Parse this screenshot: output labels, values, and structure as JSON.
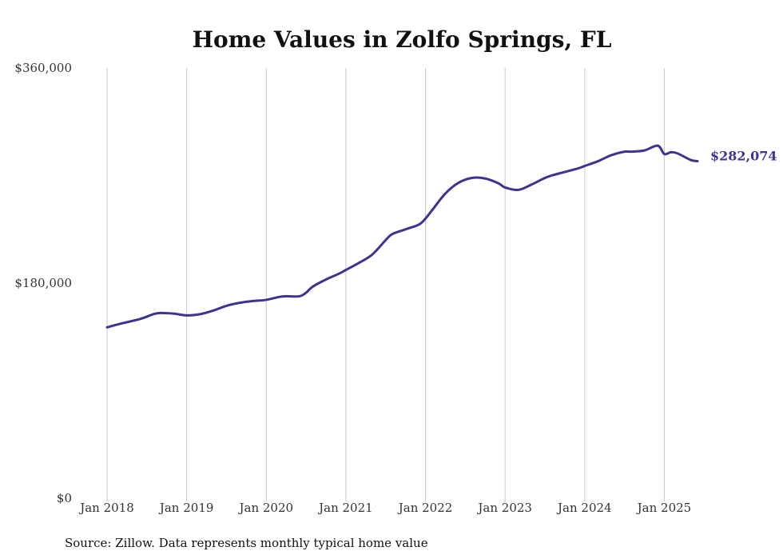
{
  "chart_data": {
    "type": "line",
    "title": "Home Values in Zolfo Springs, FL",
    "source": "Source: Zillow. Data represents monthly typical home value",
    "ylim": [
      0,
      360000
    ],
    "y_ticks": [
      {
        "value": 0,
        "label": "$0"
      },
      {
        "value": 180000,
        "label": "$180,000"
      },
      {
        "value": 360000,
        "label": "$360,000"
      }
    ],
    "x_ticks": [
      {
        "value": 2018.0,
        "label": "Jan 2018"
      },
      {
        "value": 2019.0,
        "label": "Jan 2019"
      },
      {
        "value": 2020.0,
        "label": "Jan 2020"
      },
      {
        "value": 2021.0,
        "label": "Jan 2021"
      },
      {
        "value": 2022.0,
        "label": "Jan 2022"
      },
      {
        "value": 2023.0,
        "label": "Jan 2023"
      },
      {
        "value": 2024.0,
        "label": "Jan 2024"
      },
      {
        "value": 2025.0,
        "label": "Jan 2025"
      }
    ],
    "xlim": [
      2018.0,
      2025.417
    ],
    "grid": "vertical",
    "line_color": "#3d3391",
    "end_label": "$282,074",
    "series": [
      {
        "x": [
          2018.0,
          2018.167,
          2018.417,
          2018.583,
          2018.667,
          2018.833,
          2019.0,
          2019.167,
          2019.333,
          2019.5,
          2019.667,
          2019.833,
          2020.0,
          2020.167,
          2020.25,
          2020.417,
          2020.5,
          2020.583,
          2020.75,
          2020.917,
          2021.0,
          2021.167,
          2021.333,
          2021.5,
          2021.583,
          2021.75,
          2021.917,
          2022.0,
          2022.083,
          2022.25,
          2022.417,
          2022.583,
          2022.75,
          2022.917,
          2023.0,
          2023.167,
          2023.333,
          2023.5,
          2023.583,
          2023.75,
          2023.917,
          2024.0,
          2024.167,
          2024.333,
          2024.5,
          2024.583,
          2024.75,
          2024.917,
          2025.0,
          2025.083,
          2025.167,
          2025.333,
          2025.417
        ],
        "values": [
          143000,
          146000,
          150000,
          154000,
          155000,
          154500,
          153000,
          154000,
          157000,
          161000,
          163500,
          165000,
          166000,
          168500,
          169000,
          169000,
          172000,
          177000,
          183000,
          188000,
          191000,
          197000,
          204000,
          216000,
          221000,
          225000,
          229000,
          234000,
          241000,
          255000,
          264000,
          268000,
          267500,
          263500,
          260000,
          258000,
          262500,
          268000,
          270000,
          273000,
          276000,
          278000,
          282000,
          287000,
          290000,
          290000,
          291000,
          295000,
          288000,
          289500,
          288500,
          283000,
          282074
        ]
      }
    ]
  }
}
